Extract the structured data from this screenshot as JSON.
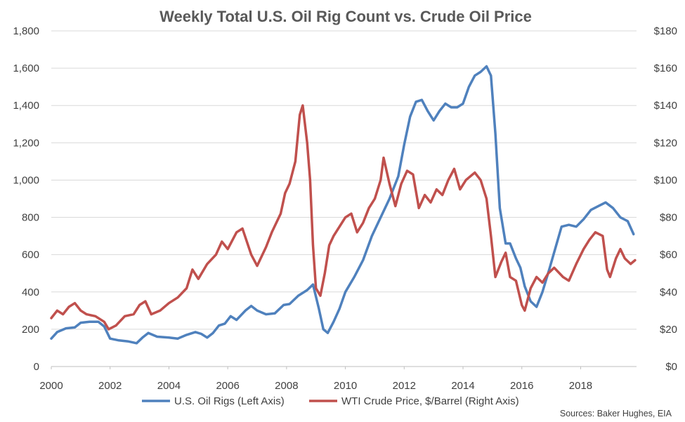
{
  "chart_data": {
    "type": "line",
    "title": "Weekly Total U.S. Oil Rig Count vs. Crude Oil Price",
    "source": "Sources: Baker Hughes, EIA",
    "x_ticks": [
      "2000",
      "2002",
      "2004",
      "2006",
      "2008",
      "2010",
      "2012",
      "2014",
      "2016",
      "2018"
    ],
    "xlim": [
      2000,
      2019.9
    ],
    "y_left": {
      "lim": [
        0,
        1800
      ],
      "ticks": [
        0,
        200,
        400,
        600,
        800,
        1000,
        1200,
        1400,
        1600,
        1800
      ],
      "tick_labels": [
        "0",
        "200",
        "400",
        "600",
        "800",
        "1,000",
        "1,200",
        "1,400",
        "1,600",
        "1,800"
      ]
    },
    "y_right": {
      "lim": [
        0,
        180
      ],
      "ticks": [
        0,
        20,
        40,
        60,
        80,
        100,
        120,
        140,
        160,
        180
      ],
      "tick_labels": [
        "$0",
        "$20",
        "$40",
        "$60",
        "$80",
        "$100",
        "$120",
        "$140",
        "$160",
        "$180"
      ]
    },
    "grid": true,
    "legend_position": "bottom",
    "series": [
      {
        "name": "U.S. Oil Rigs (Left Axis)",
        "axis": "left",
        "color": "#4f81bd",
        "points": [
          [
            2000.0,
            150
          ],
          [
            2000.2,
            185
          ],
          [
            2000.5,
            205
          ],
          [
            2000.8,
            210
          ],
          [
            2001.0,
            235
          ],
          [
            2001.3,
            240
          ],
          [
            2001.6,
            240
          ],
          [
            2001.8,
            215
          ],
          [
            2002.0,
            150
          ],
          [
            2002.3,
            140
          ],
          [
            2002.6,
            135
          ],
          [
            2002.9,
            125
          ],
          [
            2003.1,
            155
          ],
          [
            2003.3,
            180
          ],
          [
            2003.6,
            160
          ],
          [
            2004.0,
            155
          ],
          [
            2004.3,
            150
          ],
          [
            2004.6,
            170
          ],
          [
            2004.9,
            185
          ],
          [
            2005.1,
            175
          ],
          [
            2005.3,
            155
          ],
          [
            2005.5,
            180
          ],
          [
            2005.7,
            220
          ],
          [
            2005.9,
            230
          ],
          [
            2006.1,
            270
          ],
          [
            2006.3,
            250
          ],
          [
            2006.6,
            300
          ],
          [
            2006.8,
            325
          ],
          [
            2007.0,
            300
          ],
          [
            2007.3,
            280
          ],
          [
            2007.6,
            285
          ],
          [
            2007.9,
            330
          ],
          [
            2008.1,
            335
          ],
          [
            2008.4,
            380
          ],
          [
            2008.7,
            410
          ],
          [
            2008.9,
            440
          ],
          [
            2009.1,
            310
          ],
          [
            2009.25,
            200
          ],
          [
            2009.4,
            180
          ],
          [
            2009.6,
            240
          ],
          [
            2009.8,
            310
          ],
          [
            2010.0,
            400
          ],
          [
            2010.3,
            480
          ],
          [
            2010.6,
            570
          ],
          [
            2010.9,
            700
          ],
          [
            2011.2,
            800
          ],
          [
            2011.5,
            900
          ],
          [
            2011.8,
            1020
          ],
          [
            2012.0,
            1190
          ],
          [
            2012.2,
            1340
          ],
          [
            2012.4,
            1420
          ],
          [
            2012.6,
            1430
          ],
          [
            2012.8,
            1370
          ],
          [
            2013.0,
            1320
          ],
          [
            2013.2,
            1370
          ],
          [
            2013.4,
            1410
          ],
          [
            2013.6,
            1390
          ],
          [
            2013.8,
            1390
          ],
          [
            2014.0,
            1410
          ],
          [
            2014.2,
            1500
          ],
          [
            2014.4,
            1560
          ],
          [
            2014.6,
            1580
          ],
          [
            2014.8,
            1610
          ],
          [
            2014.95,
            1560
          ],
          [
            2015.1,
            1250
          ],
          [
            2015.25,
            850
          ],
          [
            2015.45,
            660
          ],
          [
            2015.6,
            660
          ],
          [
            2015.8,
            580
          ],
          [
            2015.95,
            530
          ],
          [
            2016.1,
            430
          ],
          [
            2016.3,
            350
          ],
          [
            2016.5,
            320
          ],
          [
            2016.7,
            400
          ],
          [
            2016.95,
            530
          ],
          [
            2017.15,
            640
          ],
          [
            2017.35,
            750
          ],
          [
            2017.6,
            760
          ],
          [
            2017.85,
            750
          ],
          [
            2018.1,
            790
          ],
          [
            2018.35,
            840
          ],
          [
            2018.6,
            860
          ],
          [
            2018.85,
            880
          ],
          [
            2019.1,
            850
          ],
          [
            2019.35,
            800
          ],
          [
            2019.6,
            780
          ],
          [
            2019.8,
            710
          ]
        ]
      },
      {
        "name": "WTI Crude Price, $/Barrel (Right Axis)",
        "axis": "right",
        "color": "#c0504d",
        "points": [
          [
            2000.0,
            26
          ],
          [
            2000.2,
            30
          ],
          [
            2000.4,
            28
          ],
          [
            2000.6,
            32
          ],
          [
            2000.8,
            34
          ],
          [
            2001.0,
            30
          ],
          [
            2001.2,
            28
          ],
          [
            2001.5,
            27
          ],
          [
            2001.8,
            24
          ],
          [
            2001.95,
            20
          ],
          [
            2002.2,
            22
          ],
          [
            2002.5,
            27
          ],
          [
            2002.8,
            28
          ],
          [
            2003.0,
            33
          ],
          [
            2003.2,
            35
          ],
          [
            2003.4,
            28
          ],
          [
            2003.7,
            30
          ],
          [
            2004.0,
            34
          ],
          [
            2004.3,
            37
          ],
          [
            2004.6,
            42
          ],
          [
            2004.8,
            52
          ],
          [
            2005.0,
            47
          ],
          [
            2005.3,
            55
          ],
          [
            2005.6,
            60
          ],
          [
            2005.8,
            67
          ],
          [
            2006.0,
            63
          ],
          [
            2006.3,
            72
          ],
          [
            2006.5,
            74
          ],
          [
            2006.8,
            60
          ],
          [
            2007.0,
            54
          ],
          [
            2007.3,
            64
          ],
          [
            2007.5,
            72
          ],
          [
            2007.8,
            82
          ],
          [
            2007.95,
            93
          ],
          [
            2008.1,
            98
          ],
          [
            2008.3,
            110
          ],
          [
            2008.45,
            135
          ],
          [
            2008.55,
            140
          ],
          [
            2008.7,
            120
          ],
          [
            2008.8,
            100
          ],
          [
            2008.9,
            65
          ],
          [
            2009.0,
            42
          ],
          [
            2009.15,
            38
          ],
          [
            2009.3,
            50
          ],
          [
            2009.45,
            65
          ],
          [
            2009.6,
            70
          ],
          [
            2009.8,
            75
          ],
          [
            2010.0,
            80
          ],
          [
            2010.2,
            82
          ],
          [
            2010.4,
            72
          ],
          [
            2010.6,
            77
          ],
          [
            2010.8,
            85
          ],
          [
            2011.0,
            90
          ],
          [
            2011.2,
            100
          ],
          [
            2011.3,
            112
          ],
          [
            2011.5,
            98
          ],
          [
            2011.7,
            86
          ],
          [
            2011.9,
            98
          ],
          [
            2012.1,
            105
          ],
          [
            2012.3,
            103
          ],
          [
            2012.5,
            85
          ],
          [
            2012.7,
            92
          ],
          [
            2012.9,
            88
          ],
          [
            2013.1,
            95
          ],
          [
            2013.3,
            92
          ],
          [
            2013.5,
            100
          ],
          [
            2013.7,
            106
          ],
          [
            2013.9,
            95
          ],
          [
            2014.1,
            100
          ],
          [
            2014.4,
            104
          ],
          [
            2014.6,
            100
          ],
          [
            2014.8,
            90
          ],
          [
            2014.95,
            70
          ],
          [
            2015.1,
            48
          ],
          [
            2015.3,
            56
          ],
          [
            2015.45,
            61
          ],
          [
            2015.6,
            48
          ],
          [
            2015.8,
            46
          ],
          [
            2016.0,
            33
          ],
          [
            2016.1,
            30
          ],
          [
            2016.3,
            42
          ],
          [
            2016.5,
            48
          ],
          [
            2016.7,
            45
          ],
          [
            2016.9,
            50
          ],
          [
            2017.1,
            53
          ],
          [
            2017.4,
            48
          ],
          [
            2017.6,
            46
          ],
          [
            2017.85,
            55
          ],
          [
            2018.1,
            63
          ],
          [
            2018.3,
            68
          ],
          [
            2018.5,
            72
          ],
          [
            2018.75,
            70
          ],
          [
            2018.9,
            52
          ],
          [
            2019.0,
            48
          ],
          [
            2019.2,
            58
          ],
          [
            2019.35,
            63
          ],
          [
            2019.5,
            58
          ],
          [
            2019.7,
            55
          ],
          [
            2019.85,
            57
          ]
        ]
      }
    ]
  }
}
